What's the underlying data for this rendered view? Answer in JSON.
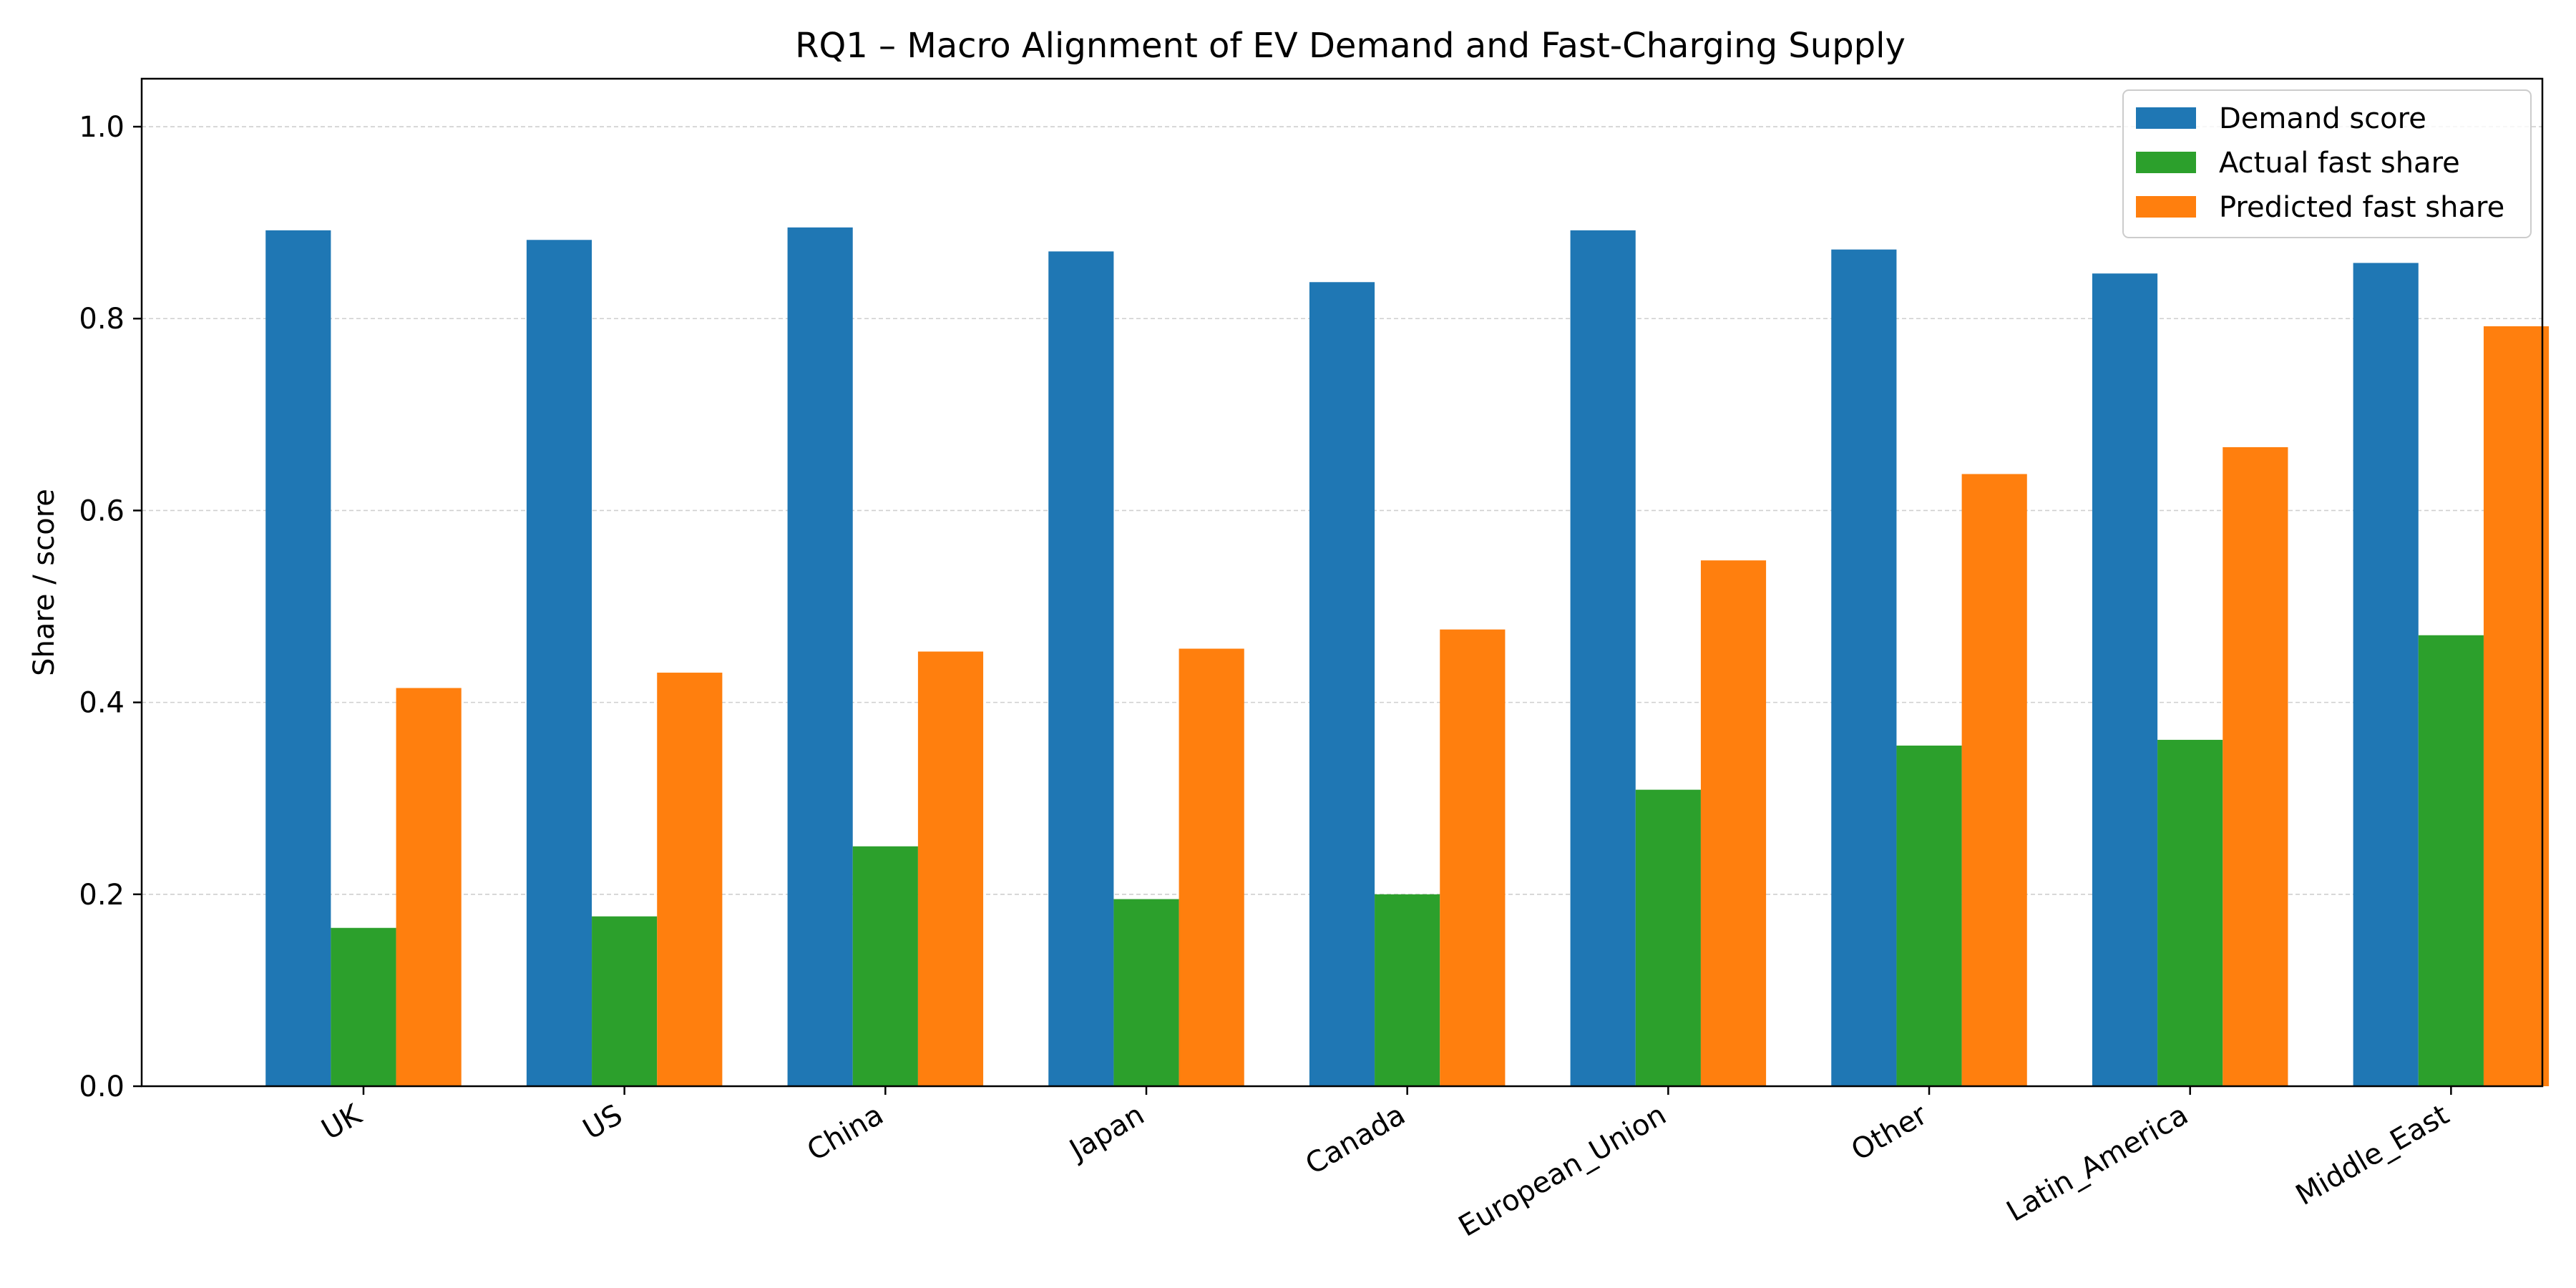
{
  "chart_data": {
    "type": "bar",
    "title": "RQ1 – Macro Alignment of EV Demand and Fast-Charging Supply",
    "xlabel": "",
    "ylabel": "Share / score",
    "ylim": [
      0,
      1.05
    ],
    "yticks": [
      0.0,
      0.2,
      0.4,
      0.6,
      0.8,
      1.0
    ],
    "ytick_labels": [
      "0.0",
      "0.2",
      "0.4",
      "0.6",
      "0.8",
      "1.0"
    ],
    "grid": "y, dashed",
    "legend_position": "top-right",
    "categories": [
      "UK",
      "US",
      "China",
      "Japan",
      "Canada",
      "European_Union",
      "Other",
      "Latin_America",
      "Middle_East"
    ],
    "series": [
      {
        "name": "Demand score",
        "color": "#1f77b4",
        "values": [
          0.892,
          0.882,
          0.895,
          0.87,
          0.838,
          0.892,
          0.872,
          0.847,
          0.858
        ]
      },
      {
        "name": "Actual fast share",
        "color": "#2ca02c",
        "values": [
          0.165,
          0.177,
          0.25,
          0.195,
          0.2,
          0.309,
          0.355,
          0.361,
          0.47
        ]
      },
      {
        "name": "Predicted fast share",
        "color": "#ff7f0e",
        "values": [
          0.415,
          0.431,
          0.453,
          0.456,
          0.476,
          0.548,
          0.638,
          0.666,
          0.792
        ]
      }
    ]
  }
}
